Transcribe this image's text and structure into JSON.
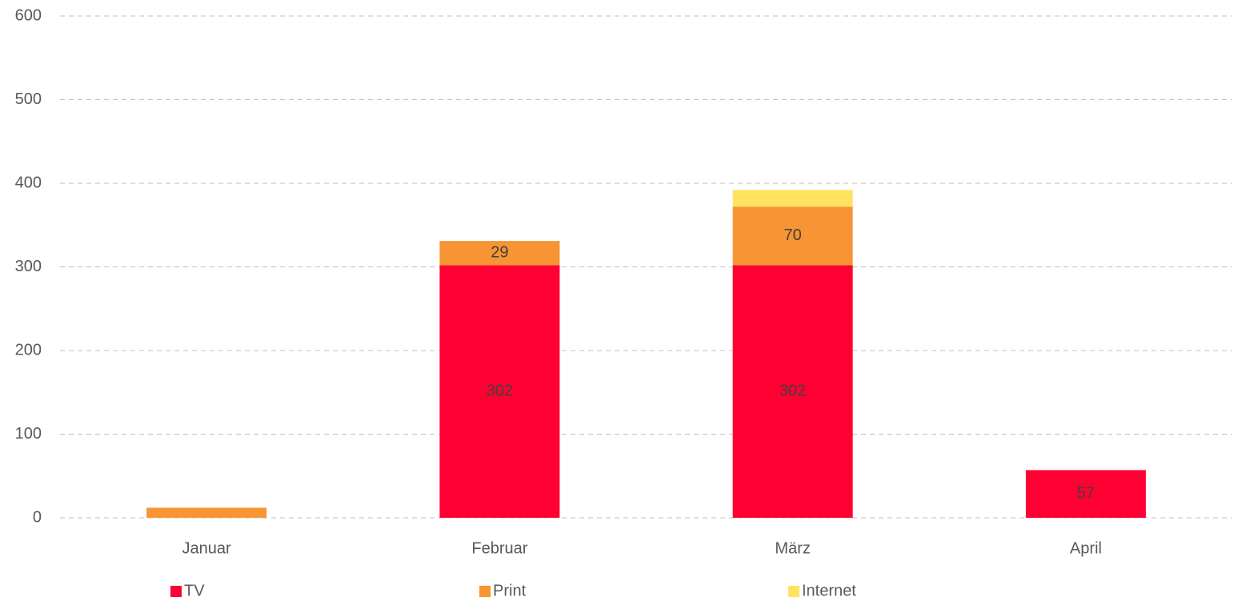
{
  "chart_data": {
    "type": "stacked_bar",
    "categories": [
      "Januar",
      "Februar",
      "März",
      "April"
    ],
    "series": [
      {
        "name": "TV",
        "color": "#ff0033",
        "values": [
          null,
          302,
          302,
          57
        ]
      },
      {
        "name": "Print",
        "color": "#f79433",
        "values": [
          12,
          29,
          70,
          null
        ]
      },
      {
        "name": "Internet",
        "color": "#ffe360",
        "values": [
          null,
          null,
          20,
          null
        ]
      }
    ],
    "ylim": [
      0,
      600
    ],
    "yticks": [
      0,
      100,
      200,
      300,
      400,
      500,
      600
    ],
    "grid": true,
    "legend": "bottom"
  }
}
